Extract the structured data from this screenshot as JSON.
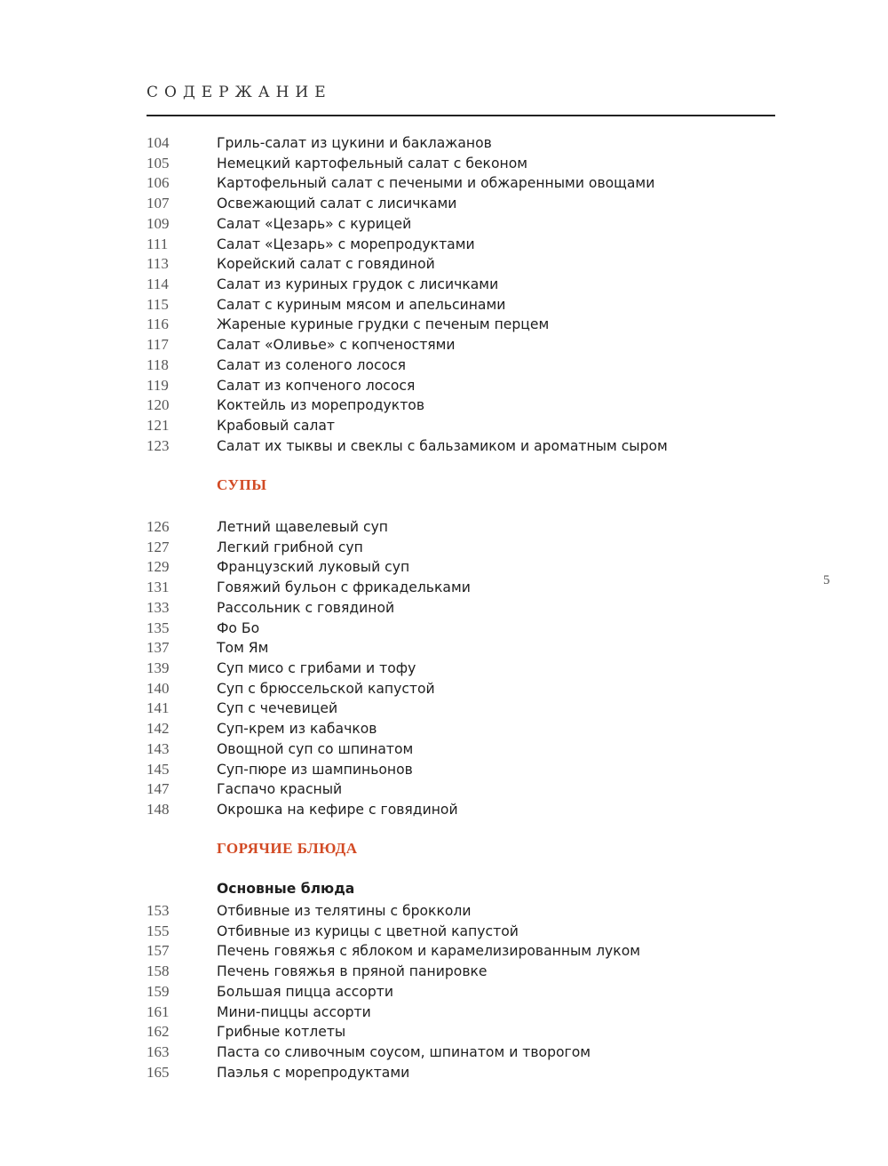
{
  "title": "СОДЕРЖАНИЕ",
  "page_number": "5",
  "accent_color": "#d24a24",
  "salads": [
    {
      "page": "104",
      "name": "Гриль-салат из цукини и баклажанов"
    },
    {
      "page": "105",
      "name": "Немецкий картофельный салат с беконом"
    },
    {
      "page": "106",
      "name": "Картофельный салат с печеными и обжаренными овощами"
    },
    {
      "page": "107",
      "name": "Освежающий салат с лисичками"
    },
    {
      "page": "109",
      "name": "Салат «Цезарь» с курицей"
    },
    {
      "page": "111",
      "name": "Салат «Цезарь» с морепродуктами"
    },
    {
      "page": "113",
      "name": "Корейский салат с говядиной"
    },
    {
      "page": "114",
      "name": "Салат из куриных грудок с лисичками"
    },
    {
      "page": "115",
      "name": "Салат с куриным мясом и апельсинами"
    },
    {
      "page": "116",
      "name": "Жареные куриные грудки с печеным перцем"
    },
    {
      "page": "117",
      "name": "Салат «Оливье» с копченостями"
    },
    {
      "page": "118",
      "name": "Салат из соленого лосося"
    },
    {
      "page": "119",
      "name": "Салат из копченого лосося"
    },
    {
      "page": "120",
      "name": "Коктейль из морепродуктов"
    },
    {
      "page": "121",
      "name": "Крабовый салат"
    },
    {
      "page": "123",
      "name": "Салат их тыквы и свеклы с бальзамиком и ароматным сыром"
    }
  ],
  "soups": {
    "heading": "СУПЫ",
    "items": [
      {
        "page": "126",
        "name": "Летний щавелевый суп"
      },
      {
        "page": "127",
        "name": "Легкий грибной суп"
      },
      {
        "page": "129",
        "name": "Французский луковый суп"
      },
      {
        "page": "131",
        "name": "Говяжий бульон с фрикадельками"
      },
      {
        "page": "133",
        "name": "Рассольник с говядиной"
      },
      {
        "page": "135",
        "name": "Фо Бо"
      },
      {
        "page": "137",
        "name": "Том Ям"
      },
      {
        "page": "139",
        "name": "Суп мисо с грибами и тофу"
      },
      {
        "page": "140",
        "name": "Суп с брюссельской капустой"
      },
      {
        "page": "141",
        "name": "Суп с чечевицей"
      },
      {
        "page": "142",
        "name": "Суп-крем из кабачков"
      },
      {
        "page": "143",
        "name": "Овощной суп со шпинатом"
      },
      {
        "page": "145",
        "name": "Суп-пюре из шампиньонов"
      },
      {
        "page": "147",
        "name": "Гаспачо красный"
      },
      {
        "page": "148",
        "name": "Окрошка на кефире с говядиной"
      }
    ]
  },
  "hot": {
    "heading": "ГОРЯЧИЕ БЛЮДА",
    "subheading": "Основные блюда",
    "items": [
      {
        "page": "153",
        "name": "Отбивные из телятины с брокколи"
      },
      {
        "page": "155",
        "name": "Отбивные из курицы с цветной капустой"
      },
      {
        "page": "157",
        "name": "Печень говяжья с яблоком и карамелизированным луком"
      },
      {
        "page": "158",
        "name": "Печень говяжья в пряной панировке"
      },
      {
        "page": "159",
        "name": "Большая пицца ассорти"
      },
      {
        "page": "161",
        "name": "Мини-пиццы ассорти"
      },
      {
        "page": "162",
        "name": "Грибные котлеты"
      },
      {
        "page": "163",
        "name": "Паста со сливочным соусом, шпинатом и творогом"
      },
      {
        "page": "165",
        "name": "Паэлья с морепродуктами"
      }
    ]
  }
}
